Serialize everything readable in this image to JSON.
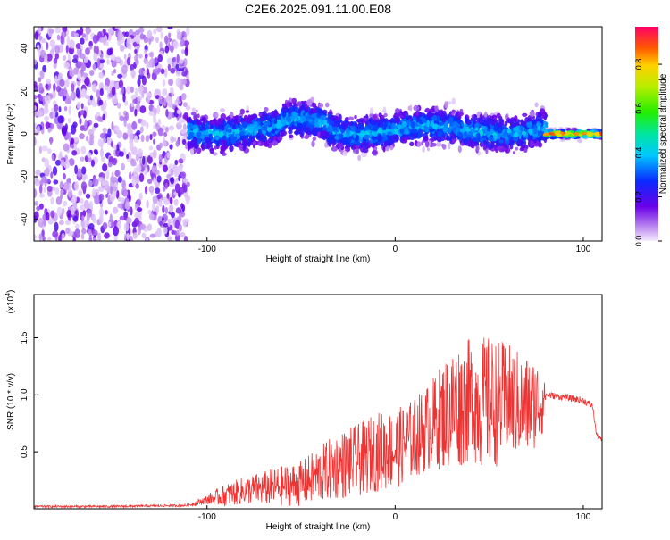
{
  "title": "C2E6.2025.091.11.00.E08",
  "chart_data": [
    {
      "type": "heatmap",
      "title": "C2E6.2025.091.11.00.E08",
      "xlabel": "Height of straight line (km)",
      "ylabel": "Frequency (Hz)",
      "xlim": [
        -192,
        110
      ],
      "ylim": [
        -50,
        50
      ],
      "x_ticks": [
        "-100",
        "0",
        "100"
      ],
      "x_tick_values": [
        -100,
        0,
        100
      ],
      "y_ticks": [
        "-40",
        "-20",
        "0",
        "20",
        "40"
      ],
      "y_tick_values": [
        -40,
        -20,
        0,
        20,
        40
      ],
      "colorbar": {
        "label": "Normalized spectral amplitude",
        "ticks": [
          "0.0",
          "0.2",
          "0.4",
          "0.6",
          "0.8"
        ],
        "tick_values": [
          0.0,
          0.2,
          0.4,
          0.6,
          0.8
        ],
        "range": [
          0,
          0.97
        ]
      },
      "regions": [
        {
          "x": [
            -192,
            -110
          ],
          "freq_spread": 50,
          "amplitude": 0.05
        },
        {
          "x": [
            -110,
            80
          ],
          "freq_center": 2,
          "freq_spread": 8,
          "amplitude": 0.25
        },
        {
          "x": [
            80,
            110
          ],
          "freq_center": 0,
          "freq_spread": 2,
          "amplitude": 0.9
        }
      ]
    },
    {
      "type": "line",
      "xlabel": "Height of straight line (km)",
      "ylabel": "SNR (10 * v/v)",
      "y_multiplier_label": "(x10",
      "y_multiplier_exp": "4",
      "xlim": [
        -192,
        110
      ],
      "ylim": [
        0,
        1.88
      ],
      "x_ticks": [
        "-100",
        "0",
        "100"
      ],
      "x_tick_values": [
        -100,
        0,
        100
      ],
      "y_ticks": [
        "0.5",
        "1.0",
        "1.5"
      ],
      "y_tick_values": [
        0.5,
        1.0,
        1.5
      ],
      "color": "#ee3333",
      "series": [
        {
          "x": [
            -192,
            -150,
            -110,
            -100,
            -90,
            -80,
            -70,
            -60,
            -50,
            -40,
            -30,
            -20,
            -10,
            0,
            10,
            20,
            30,
            40,
            50,
            60,
            70,
            78,
            80,
            90,
            100,
            105,
            107,
            110
          ],
          "mean": [
            0.02,
            0.02,
            0.03,
            0.08,
            0.12,
            0.16,
            0.18,
            0.2,
            0.22,
            0.3,
            0.38,
            0.42,
            0.5,
            0.52,
            0.62,
            0.75,
            0.88,
            0.95,
            0.92,
            0.95,
            0.9,
            0.95,
            1.0,
            0.98,
            0.95,
            0.9,
            0.65,
            0.6
          ],
          "spread": [
            0.01,
            0.01,
            0.01,
            0.04,
            0.1,
            0.12,
            0.15,
            0.18,
            0.2,
            0.25,
            0.3,
            0.32,
            0.35,
            0.35,
            0.35,
            0.4,
            0.55,
            0.55,
            0.6,
            0.5,
            0.45,
            0.35,
            0.03,
            0.03,
            0.03,
            0.03,
            0.02,
            0.02
          ]
        }
      ]
    }
  ]
}
